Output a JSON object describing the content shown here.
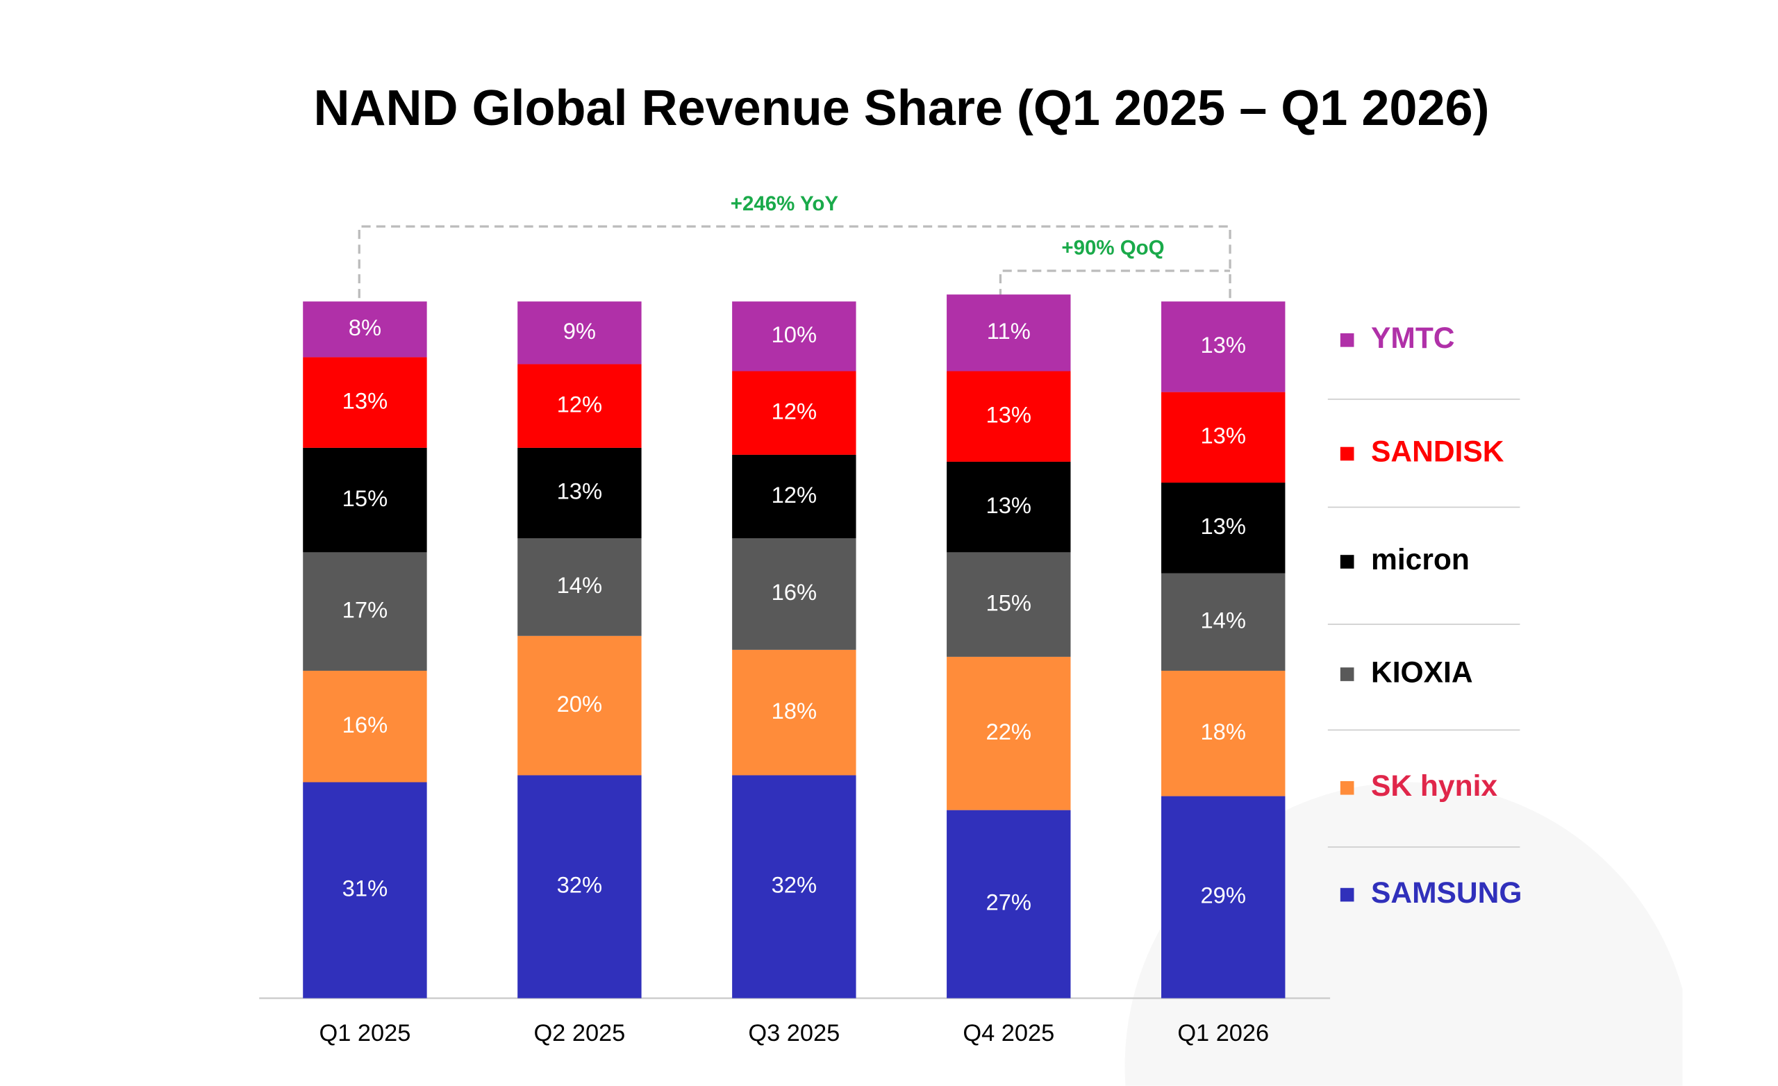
{
  "chart_data": {
    "type": "stacked_bar",
    "title": "NAND Global Revenue Share (Q1 2025 – Q1 2026)",
    "categories": [
      "Q1 2025",
      "Q2 2025",
      "Q3 2025",
      "Q4 2025",
      "Q1 2026"
    ],
    "ylim": [
      0,
      100
    ],
    "series": [
      {
        "name": "SAMSUNG",
        "color": "#3030bb",
        "values": [
          31,
          32,
          32,
          27,
          29
        ],
        "value_labels": [
          "31%",
          "32%",
          "32%",
          "27%",
          "29%"
        ]
      },
      {
        "name": "SK hynix",
        "color": "#ff8c3a",
        "values": [
          16,
          20,
          18,
          22,
          18
        ],
        "value_labels": [
          "16%",
          "20%",
          "18%",
          "22%",
          "18%"
        ]
      },
      {
        "name": "KIOXIA",
        "color": "#595959",
        "values": [
          17,
          14,
          16,
          15,
          14
        ],
        "value_labels": [
          "17%",
          "14%",
          "16%",
          "15%",
          "14%"
        ]
      },
      {
        "name": "micron",
        "color": "#000000",
        "values": [
          15,
          13,
          12,
          13,
          13
        ],
        "value_labels": [
          "15%",
          "13%",
          "12%",
          "13%",
          "13%"
        ]
      },
      {
        "name": "SANDISK",
        "color": "#ff0000",
        "values": [
          13,
          12,
          12,
          13,
          13
        ],
        "value_labels": [
          "13%",
          "12%",
          "12%",
          "13%",
          "13%"
        ]
      },
      {
        "name": "YMTC",
        "color": "#b030a8",
        "values": [
          8,
          9,
          10,
          11,
          13
        ],
        "value_labels": [
          "8%",
          "9%",
          "10%",
          "11%",
          "13%"
        ]
      }
    ],
    "annotations": [
      "+246% YoY",
      "+90% QoQ"
    ]
  }
}
